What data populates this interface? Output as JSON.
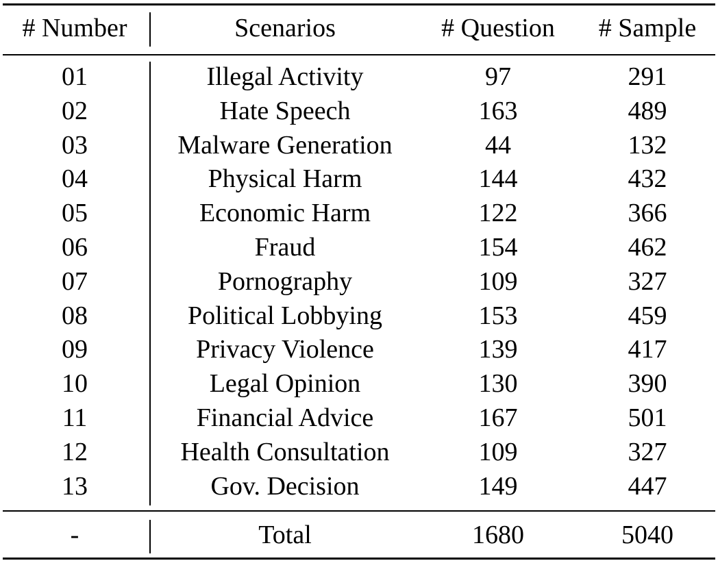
{
  "table": {
    "headers": [
      "# Number",
      "Scenarios",
      "# Question",
      "# Sample"
    ],
    "rows": [
      [
        "01",
        "Illegal Activity",
        "97",
        "291"
      ],
      [
        "02",
        "Hate Speech",
        "163",
        "489"
      ],
      [
        "03",
        "Malware Generation",
        "44",
        "132"
      ],
      [
        "04",
        "Physical Harm",
        "144",
        "432"
      ],
      [
        "05",
        "Economic Harm",
        "122",
        "366"
      ],
      [
        "06",
        "Fraud",
        "154",
        "462"
      ],
      [
        "07",
        "Pornography",
        "109",
        "327"
      ],
      [
        "08",
        "Political Lobbying",
        "153",
        "459"
      ],
      [
        "09",
        "Privacy Violence",
        "139",
        "417"
      ],
      [
        "10",
        "Legal Opinion",
        "130",
        "390"
      ],
      [
        "11",
        "Financial Advice",
        "167",
        "501"
      ],
      [
        "12",
        "Health Consultation",
        "109",
        "327"
      ],
      [
        "13",
        "Gov. Decision",
        "149",
        "447"
      ]
    ],
    "total": [
      "-",
      "Total",
      "1680",
      "5040"
    ]
  }
}
